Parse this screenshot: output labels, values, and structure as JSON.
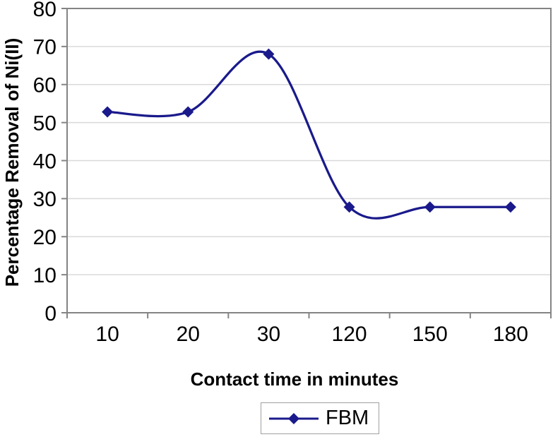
{
  "chart_data": {
    "type": "line",
    "title": "",
    "xlabel": "Contact time in minutes",
    "ylabel": "Percentage Removal of Ni(II)",
    "categories": [
      "10",
      "20",
      "30",
      "120",
      "150",
      "180"
    ],
    "series": [
      {
        "name": "FBM",
        "values": [
          52.8,
          52.8,
          68,
          27.8,
          27.8,
          27.8
        ],
        "marker": "diamond",
        "smooth": true
      }
    ],
    "ylim": [
      0,
      80
    ],
    "yticks": [
      0,
      10,
      20,
      30,
      40,
      50,
      60,
      70,
      80
    ],
    "grid": "horizontal",
    "legend_position": "bottom-center",
    "colors": {
      "series_line": "#1a1a8c",
      "gridline": "#d9d9d9",
      "plot_border": "#848484",
      "tick": "#848484",
      "text": "#000000",
      "background": "#ffffff",
      "legend_border": "#a0a0a0"
    }
  }
}
